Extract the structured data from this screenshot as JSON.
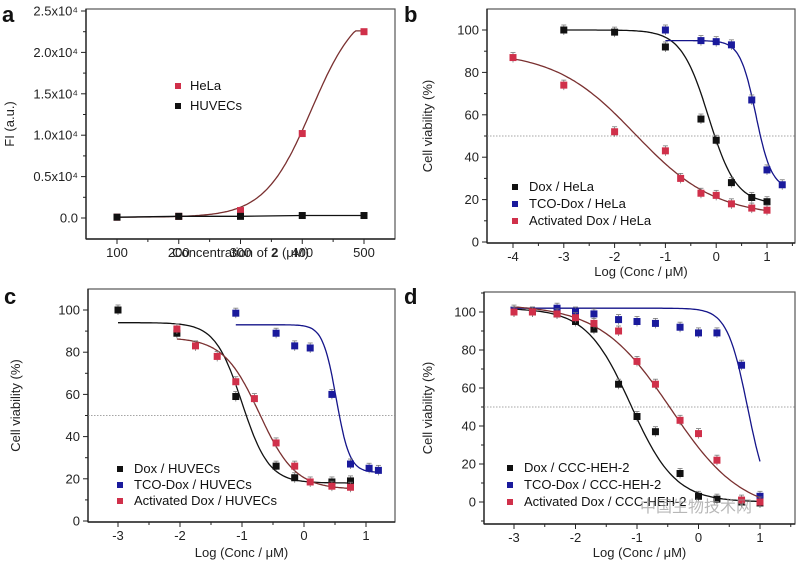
{
  "figure": {
    "watermark": "中国生物技术网",
    "colors": {
      "black": "#111111",
      "blue": "#1a1a9c",
      "red": "#d0304a",
      "red_fit": "#7a3030",
      "axis": "#222222",
      "refline": "#888888"
    }
  },
  "chart_data": [
    {
      "panel": "a",
      "type": "line",
      "title": "",
      "xlabel": "Concentration of 2 (μM)",
      "xlabel_parts": [
        "Concentration of ",
        "2",
        " (μM)"
      ],
      "ylabel": "FI (a.u.)",
      "xlim": [
        50,
        550
      ],
      "ylim": [
        -2500,
        25000
      ],
      "xticks": [
        100,
        200,
        300,
        400,
        500
      ],
      "xtick_labels": [
        "100",
        "200",
        "300",
        "400",
        "500"
      ],
      "yticks": [
        0,
        5000,
        10000,
        15000,
        20000,
        25000
      ],
      "ytick_labels": [
        "0.0",
        "0.5x10⁴",
        "1.0x10⁴",
        "1.5x10⁴",
        "2.0x10⁴",
        "2.5x10⁴"
      ],
      "legend_position": "center",
      "series": [
        {
          "name": "HeLa",
          "color": "red",
          "x": [
            100,
            200,
            300,
            400,
            500
          ],
          "y": [
            100,
            200,
            900,
            10200,
            22500
          ],
          "fit": "sigmoid-a"
        },
        {
          "name": "HUVECs",
          "color": "black",
          "x": [
            100,
            200,
            300,
            400,
            500
          ],
          "y": [
            100,
            200,
            200,
            300,
            300
          ],
          "fit": "linear"
        }
      ]
    },
    {
      "panel": "b",
      "type": "scatter",
      "title": "",
      "xlabel": "Log (Conc / μM)",
      "ylabel": "Cell viability (%)",
      "xlim": [
        -4.5,
        1.55
      ],
      "ylim": [
        0,
        110
      ],
      "xticks": [
        -4,
        -3,
        -2,
        -1,
        0,
        1
      ],
      "xtick_labels": [
        "-4",
        "-3",
        "-2",
        "-1",
        "0",
        "1"
      ],
      "yticks": [
        0,
        20,
        40,
        60,
        80,
        100
      ],
      "ytick_labels": [
        "0",
        "20",
        "40",
        "60",
        "80",
        "100"
      ],
      "reference_line": 50,
      "legend_position": "bottom-left",
      "series": [
        {
          "name": "Dox / HeLa",
          "color": "black",
          "x": [
            -3,
            -2,
            -1,
            -0.3,
            0,
            0.3,
            0.7,
            1
          ],
          "y": [
            100,
            99,
            92,
            58,
            48,
            28,
            21,
            19
          ],
          "fit": {
            "top": 100,
            "bottom": 18,
            "logec50": -0.15,
            "hill": 1.6,
            "from": -3,
            "to": 1
          }
        },
        {
          "name": "TCO-Dox / HeLa",
          "color": "blue",
          "x": [
            -1,
            -0.3,
            0,
            0.3,
            0.7,
            1,
            1.3
          ],
          "y": [
            100,
            95,
            94.5,
            93,
            67,
            34,
            27
          ],
          "fit": {
            "top": 95,
            "bottom": 25,
            "logec50": 0.78,
            "hill": 2.8,
            "from": -1,
            "to": 1.3
          }
        },
        {
          "name": "Activated Dox / HeLa",
          "color": "red",
          "x": [
            -4,
            -3,
            -2,
            -1,
            -0.7,
            -0.3,
            0,
            0.3,
            0.7,
            1
          ],
          "y": [
            87,
            74,
            52,
            43,
            30,
            23,
            22,
            18,
            16,
            15
          ],
          "fit": {
            "top": 90,
            "bottom": 12,
            "logec50": -1.6,
            "hill": 0.55,
            "from": -4,
            "to": 1
          }
        }
      ]
    },
    {
      "panel": "c",
      "type": "scatter",
      "title": "",
      "xlabel": "Log (Conc / μM)",
      "ylabel": "Cell viability (%)",
      "xlim": [
        -3.5,
        1.45
      ],
      "ylim": [
        0,
        110
      ],
      "xticks": [
        -3,
        -2,
        -1,
        0,
        1
      ],
      "xtick_labels": [
        "-3",
        "-2",
        "-1",
        "0",
        "1"
      ],
      "yticks": [
        0,
        20,
        40,
        60,
        80,
        100
      ],
      "ytick_labels": [
        "0",
        "20",
        "40",
        "60",
        "80",
        "100"
      ],
      "reference_line": 50,
      "legend_position": "bottom-left",
      "series": [
        {
          "name": "Dox / HUVECs",
          "color": "black",
          "x": [
            -3,
            -2.05,
            -1.1,
            -0.45,
            -0.15,
            0.45,
            0.75
          ],
          "y": [
            100,
            89,
            59,
            26,
            20.5,
            18.5,
            19
          ],
          "fit": {
            "top": 94,
            "bottom": 18,
            "logec50": -1.0,
            "hill": 2.0,
            "from": -3,
            "to": 0.75
          }
        },
        {
          "name": "TCO-Dox / HUVECs",
          "color": "blue",
          "x": [
            -1.1,
            -0.45,
            -0.15,
            0.1,
            0.45,
            0.75,
            1.05,
            1.2
          ],
          "y": [
            98.5,
            89,
            83,
            82,
            60,
            27,
            25,
            24
          ],
          "fit": {
            "top": 93,
            "bottom": 23,
            "logec50": 0.52,
            "hill": 4.0,
            "from": -1.1,
            "to": 1.2
          }
        },
        {
          "name": "Activated Dox / HUVECs",
          "color": "red",
          "x": [
            -2.05,
            -1.75,
            -1.4,
            -1.1,
            -0.8,
            -0.45,
            -0.15,
            0.1,
            0.45,
            0.75
          ],
          "y": [
            91,
            83,
            78,
            66,
            58,
            37,
            26,
            18.5,
            16.5,
            16
          ],
          "fit": {
            "top": 87,
            "bottom": 15,
            "logec50": -0.72,
            "hill": 1.5,
            "from": -2.05,
            "to": 0.75
          }
        }
      ]
    },
    {
      "panel": "d",
      "type": "scatter",
      "title": "",
      "xlabel": "Log (Conc / μM)",
      "ylabel": "Cell viability (%)",
      "xlim": [
        -3.5,
        1.5
      ],
      "ylim": [
        -10,
        110
      ],
      "xticks": [
        -3,
        -2,
        -1,
        0,
        1
      ],
      "xtick_labels": [
        "-3",
        "-2",
        "-1",
        "0",
        "1"
      ],
      "yticks": [
        0,
        20,
        40,
        60,
        80,
        100
      ],
      "ytick_labels": [
        "0",
        "20",
        "40",
        "60",
        "80",
        "100"
      ],
      "reference_line": 50,
      "legend_position": "bottom-left",
      "series": [
        {
          "name": "Dox / CCC-HEH-2",
          "color": "black",
          "x": [
            -3,
            -2.7,
            -2.3,
            -2,
            -1.7,
            -1.3,
            -1,
            -0.7,
            -0.3,
            0,
            0.3,
            0.7,
            1
          ],
          "y": [
            100,
            100,
            99,
            95,
            91,
            62,
            45,
            37,
            15,
            3,
            1.5,
            0,
            -0.5
          ],
          "fit": {
            "top": 102,
            "bottom": 0,
            "logec50": -1.1,
            "hill": 1.2,
            "from": -3,
            "to": 1
          }
        },
        {
          "name": "TCO-Dox / CCC-HEH-2",
          "color": "blue",
          "x": [
            -3,
            -2.3,
            -2,
            -1.7,
            -1.3,
            -1,
            -0.7,
            -0.3,
            0,
            0.3,
            0.7,
            1
          ],
          "y": [
            101,
            102,
            100,
            99,
            96,
            95,
            94,
            92,
            89,
            89,
            72,
            3
          ],
          "fit": {
            "top": 102,
            "bottom": -3,
            "logec50": 0.8,
            "hill": 2.6,
            "from": -3,
            "to": 1
          }
        },
        {
          "name": "Activated Dox / CCC-HEH-2",
          "color": "red",
          "x": [
            -3,
            -2.7,
            -2.3,
            -2,
            -1.7,
            -1.3,
            -1,
            -0.7,
            -0.3,
            0,
            0.3,
            0.7,
            1
          ],
          "y": [
            100,
            100,
            99,
            97,
            94,
            90,
            74,
            62,
            43,
            36,
            22,
            1,
            0
          ],
          "fit": {
            "top": 104,
            "bottom": -6,
            "logec50": -0.45,
            "hill": 0.75,
            "from": -3,
            "to": 1
          }
        }
      ]
    }
  ]
}
